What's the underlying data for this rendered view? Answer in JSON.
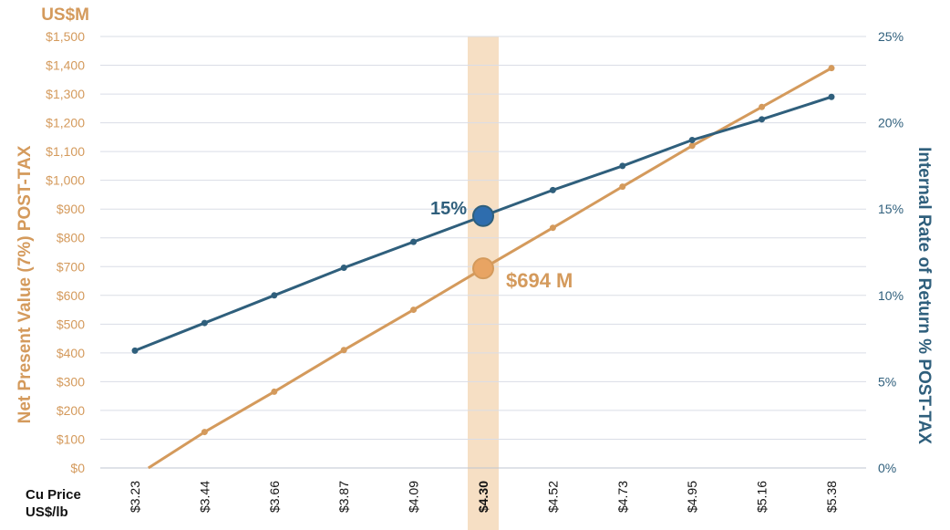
{
  "colors": {
    "npv": "#D49A5C",
    "irr": "#2F5F7C",
    "highlight": "#F6DFC4",
    "grid": "#DADDE6",
    "text": "#111111"
  },
  "chart_data": {
    "type": "line",
    "x_axis": {
      "title_line1": "Cu Price",
      "title_line2": "US$/lb",
      "categories": [
        "$3.23",
        "$3.44",
        "$3.66",
        "$3.87",
        "$4.09",
        "$4.30",
        "$4.52",
        "$4.73",
        "$4.95",
        "$5.16",
        "$5.38"
      ],
      "highlighted_category": "$4.30"
    },
    "y_left": {
      "unit_label": "US$M",
      "title": "Net Present Value (7%) POST-TAX",
      "range": [
        0,
        1500
      ],
      "ticks": [
        {
          "value": 0,
          "label": "$0"
        },
        {
          "value": 100,
          "label": "$100"
        },
        {
          "value": 200,
          "label": "$200"
        },
        {
          "value": 300,
          "label": "$300"
        },
        {
          "value": 400,
          "label": "$400"
        },
        {
          "value": 500,
          "label": "$500"
        },
        {
          "value": 600,
          "label": "$600"
        },
        {
          "value": 700,
          "label": "$700"
        },
        {
          "value": 800,
          "label": "$800"
        },
        {
          "value": 900,
          "label": "$900"
        },
        {
          "value": 1000,
          "label": "$1,000"
        },
        {
          "value": 1100,
          "label": "$1,100"
        },
        {
          "value": 1200,
          "label": "$1,200"
        },
        {
          "value": 1300,
          "label": "$1,300"
        },
        {
          "value": 1400,
          "label": "$1,400"
        },
        {
          "value": 1500,
          "label": "$1,500"
        }
      ]
    },
    "y_right": {
      "title": "Internal Rate of Return % POST-TAX",
      "range": [
        0,
        25
      ],
      "ticks": [
        {
          "value": 0,
          "label": "0%"
        },
        {
          "value": 5,
          "label": "5%"
        },
        {
          "value": 10,
          "label": "10%"
        },
        {
          "value": 15,
          "label": "15%"
        },
        {
          "value": 20,
          "label": "20%"
        },
        {
          "value": 25,
          "label": "25%"
        }
      ]
    },
    "series": [
      {
        "key": "npv",
        "axis": "left",
        "values": [
          -30,
          125,
          265,
          410,
          550,
          694,
          835,
          978,
          1120,
          1255,
          1390
        ]
      },
      {
        "key": "irr",
        "axis": "right",
        "values": [
          6.8,
          8.4,
          10.0,
          11.6,
          13.1,
          14.6,
          16.1,
          17.5,
          19.0,
          20.2,
          21.5
        ]
      }
    ],
    "annotations": [
      {
        "series": "irr",
        "category": "$4.30",
        "text": "15%"
      },
      {
        "series": "npv",
        "category": "$4.30",
        "text": "$694 M"
      }
    ],
    "grid": true,
    "legend": "none"
  }
}
